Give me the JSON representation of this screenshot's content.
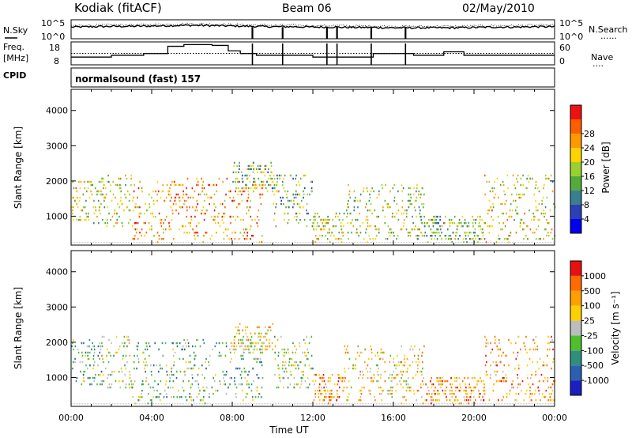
{
  "header": {
    "station": "Kodiak (fitACF)",
    "beam": "Beam 06",
    "date": "02/May/2010",
    "program": "normalsound (fast) 157"
  },
  "left_labels": {
    "nsky": "N.Sky",
    "freq_line1": "Freq.",
    "freq_line2": "[MHz]",
    "cpid": "CPID"
  },
  "right_labels": {
    "nsearch": "N.Search",
    "nave": "Nave",
    "dotted_marker": "......",
    "dotted_marker2": "...."
  },
  "chart_data": [
    {
      "panel": "noise",
      "type": "line",
      "yscale": "log",
      "yticks_left": [
        "10^5",
        "10^0"
      ],
      "yticks_right": [
        "10^5",
        "10^0"
      ],
      "series": [
        {
          "name": "N.Sky",
          "style": "solid"
        },
        {
          "name": "N.Search",
          "style": "dotted"
        }
      ],
      "x": [
        0,
        1,
        2,
        3,
        4,
        5,
        6,
        7,
        8,
        9,
        10,
        11,
        12,
        13,
        14,
        15,
        16,
        17,
        18,
        19,
        20,
        21,
        22,
        23,
        24
      ],
      "sky_log": [
        3.2,
        3.3,
        3.4,
        3.4,
        3.5,
        3.6,
        3.7,
        3.6,
        3.5,
        3.4,
        3.3,
        3.3,
        3.2,
        3.2,
        3.1,
        3.1,
        3.0,
        3.0,
        3.0,
        3.0,
        3.1,
        3.2,
        3.2,
        3.3,
        3.3
      ],
      "dropouts_hours": [
        9.0,
        10.5,
        12.7,
        13.2,
        14.9,
        16.6
      ],
      "xlim": [
        0,
        24
      ]
    },
    {
      "panel": "frequency",
      "type": "line",
      "yticks_left": [
        "18",
        "8"
      ],
      "yticks_right": [
        "60",
        "0"
      ],
      "ylim_left": [
        6,
        19
      ],
      "ylim_right": [
        0,
        60
      ],
      "series": [
        {
          "name": "Freq",
          "style": "solid"
        },
        {
          "name": "Nave",
          "style": "dotted"
        }
      ],
      "freq_steps": [
        [
          0,
          10.4
        ],
        [
          2.0,
          11.4
        ],
        [
          3.6,
          12.4
        ],
        [
          4.8,
          16.5
        ],
        [
          5.6,
          17.5
        ],
        [
          7.0,
          17.0
        ],
        [
          7.8,
          13.9
        ],
        [
          8.4,
          12.4
        ],
        [
          9.2,
          11.4
        ],
        [
          12.0,
          10.4
        ],
        [
          15.0,
          12.4
        ],
        [
          17.0,
          11.4
        ],
        [
          18.5,
          13.4
        ],
        [
          19.5,
          11.4
        ],
        [
          24,
          11.4
        ]
      ],
      "nave_level": 30,
      "xlim": [
        0,
        24
      ]
    },
    {
      "panel": "power",
      "type": "heatmap",
      "ylabel": "Slant Range [km]",
      "ylim": [
        180,
        4600
      ],
      "yticks": [
        1000,
        2000,
        3000,
        4000
      ],
      "colorbar": {
        "label": "Power [dB]",
        "ticks": [
          4,
          8,
          12,
          16,
          20,
          24,
          28
        ],
        "range": [
          0,
          32
        ],
        "colors": [
          "#0000ee",
          "#2b3fb8",
          "#3a7f8f",
          "#53ab3c",
          "#9bd12f",
          "#ffd400",
          "#ff9900",
          "#ff5e00",
          "#ee1111"
        ]
      },
      "activity": [
        {
          "hours": [
            0,
            1.5
          ],
          "ranges": [
            800,
            2100
          ],
          "mean": 18
        },
        {
          "hours": [
            1.5,
            3.0
          ],
          "ranges": [
            700,
            2200
          ],
          "mean": 16
        },
        {
          "hours": [
            3.0,
            5.0
          ],
          "ranges": [
            300,
            2000
          ],
          "mean": 22
        },
        {
          "hours": [
            5.0,
            9.5
          ],
          "ranges": [
            300,
            2100
          ],
          "mean": 24
        },
        {
          "hours": [
            8.0,
            10.0
          ],
          "ranges": [
            1700,
            2500
          ],
          "mean": 14
        },
        {
          "hours": [
            10.0,
            12.0
          ],
          "ranges": [
            700,
            2200
          ],
          "mean": 12
        },
        {
          "hours": [
            12.0,
            13.5
          ],
          "ranges": [
            300,
            1100
          ],
          "mean": 18
        },
        {
          "hours": [
            13.5,
            17.5
          ],
          "ranges": [
            300,
            1900
          ],
          "mean": 16
        },
        {
          "hours": [
            17.5,
            20.5
          ],
          "ranges": [
            300,
            1000
          ],
          "mean": 14
        },
        {
          "hours": [
            20.5,
            24.0
          ],
          "ranges": [
            300,
            2200
          ],
          "mean": 18
        }
      ],
      "xlim": [
        0,
        24
      ]
    },
    {
      "panel": "velocity",
      "type": "heatmap",
      "ylabel": "Slant Range [km]",
      "xlabel": "Time UT",
      "ylim": [
        180,
        4600
      ],
      "yticks": [
        1000,
        2000,
        3000,
        4000
      ],
      "xticks": [
        "00:00",
        "04:00",
        "08:00",
        "12:00",
        "16:00",
        "20:00",
        "00:00"
      ],
      "colorbar": {
        "label": "Velocity [m s⁻¹]",
        "ticks": [
          "1000",
          "500",
          "100",
          "25",
          "-25",
          "-100",
          "-500",
          "-1000"
        ],
        "colors": [
          "#1b1fbf",
          "#2b60b0",
          "#2f8f7f",
          "#4fbf2f",
          "#bdbdbd",
          "#ffd000",
          "#ffa000",
          "#ff6a00",
          "#e81010"
        ]
      },
      "activity": [
        {
          "hours": [
            0,
            1.5
          ],
          "ranges": [
            800,
            2100
          ],
          "mean": 3
        },
        {
          "hours": [
            1.5,
            3.0
          ],
          "ranges": [
            700,
            2200
          ],
          "mean": 4
        },
        {
          "hours": [
            3.0,
            5.0
          ],
          "ranges": [
            300,
            2000
          ],
          "mean": 3
        },
        {
          "hours": [
            5.0,
            9.5
          ],
          "ranges": [
            300,
            2100
          ],
          "mean": 3
        },
        {
          "hours": [
            8.0,
            10.0
          ],
          "ranges": [
            1700,
            2500
          ],
          "mean": 5
        },
        {
          "hours": [
            10.0,
            12.0
          ],
          "ranges": [
            700,
            2200
          ],
          "mean": 4
        },
        {
          "hours": [
            12.0,
            13.5
          ],
          "ranges": [
            300,
            1100
          ],
          "mean": 6
        },
        {
          "hours": [
            13.5,
            17.5
          ],
          "ranges": [
            300,
            1900
          ],
          "mean": 5
        },
        {
          "hours": [
            17.5,
            20.5
          ],
          "ranges": [
            300,
            1000
          ],
          "mean": 6
        },
        {
          "hours": [
            20.5,
            24.0
          ],
          "ranges": [
            300,
            2200
          ],
          "mean": 6
        }
      ],
      "xlim": [
        0,
        24
      ]
    }
  ]
}
